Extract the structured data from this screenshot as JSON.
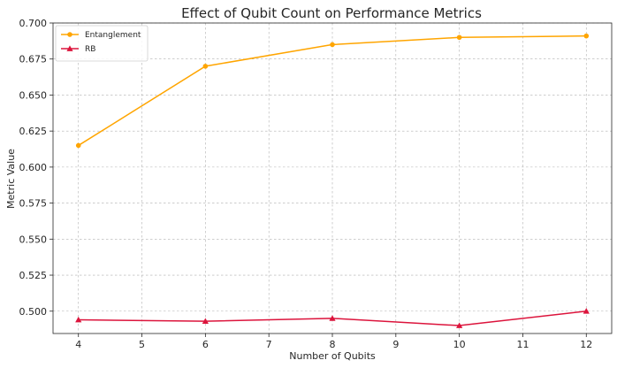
{
  "chart_data": {
    "type": "line",
    "title": "Effect of Qubit Count on Performance Metrics",
    "xlabel": "Number of Qubits",
    "ylabel": "Metric Value",
    "x": [
      4,
      6,
      8,
      10,
      12
    ],
    "xlim": [
      3.6,
      12.4
    ],
    "ylim": [
      0.4845,
      0.7
    ],
    "xticks": [
      4,
      5,
      6,
      7,
      8,
      9,
      10,
      11,
      12
    ],
    "yticks": [
      0.5,
      0.525,
      0.55,
      0.575,
      0.6,
      0.625,
      0.65,
      0.675,
      0.7
    ],
    "ytick_labels": [
      "0.500",
      "0.525",
      "0.550",
      "0.575",
      "0.600",
      "0.625",
      "0.650",
      "0.675",
      "0.700"
    ],
    "grid": true,
    "legend_position": "top-left",
    "series": [
      {
        "name": "Entanglement",
        "values": [
          0.615,
          0.67,
          0.685,
          0.69,
          0.691
        ],
        "color": "#FFA500",
        "marker": "circle"
      },
      {
        "name": "RB",
        "values": [
          0.494,
          0.493,
          0.495,
          0.49,
          0.5
        ],
        "color": "#DC143C",
        "marker": "triangle"
      }
    ]
  }
}
